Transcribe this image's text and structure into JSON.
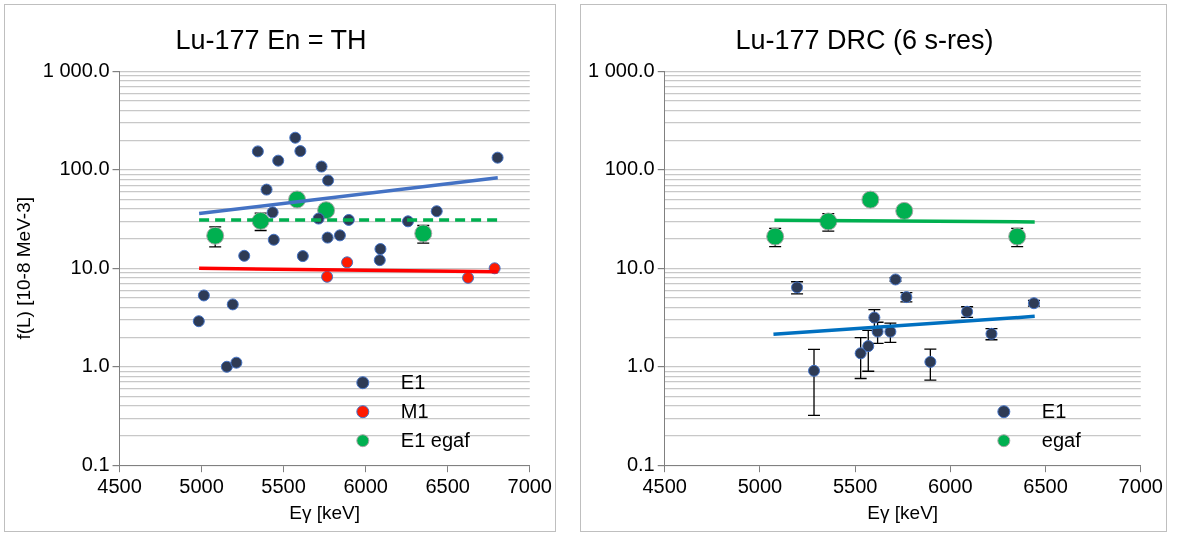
{
  "chart_data": [
    {
      "type": "scatter",
      "title": "Lu-177 En = TH",
      "xlabel": "Eγ [keV]",
      "ylabel": "f(L) [10-8 MeV-3]",
      "log": "y",
      "grid": "y",
      "legend": "bottom right",
      "xlim": [
        4500,
        7000
      ],
      "xticks": [
        4500,
        5000,
        5500,
        6000,
        6500,
        7000
      ],
      "ylim": [
        0.1,
        1000
      ],
      "yticks": [
        0.1,
        {
          "value": 0.2,
          "label": null
        },
        {
          "value": 0.3,
          "label": null
        },
        {
          "value": 0.4,
          "label": null
        },
        {
          "value": 0.5,
          "label": null
        },
        {
          "value": 0.6,
          "label": null
        },
        {
          "value": 0.7,
          "label": null
        },
        {
          "value": 0.8,
          "label": null
        },
        {
          "value": 0.9,
          "label": null
        },
        {
          "value": 1,
          "label": "1.0"
        },
        {
          "value": 2,
          "label": null
        },
        {
          "value": 3,
          "label": null
        },
        {
          "value": 4,
          "label": null
        },
        {
          "value": 5,
          "label": null
        },
        {
          "value": 6,
          "label": null
        },
        {
          "value": 7,
          "label": null
        },
        {
          "value": 8,
          "label": null
        },
        {
          "value": 9,
          "label": null
        },
        {
          "value": 10,
          "label": "10.0"
        },
        {
          "value": 20,
          "label": null
        },
        {
          "value": 30,
          "label": null
        },
        {
          "value": 40,
          "label": null
        },
        {
          "value": 50,
          "label": null
        },
        {
          "value": 60,
          "label": null
        },
        {
          "value": 70,
          "label": null
        },
        {
          "value": 80,
          "label": null
        },
        {
          "value": 90,
          "label": null
        },
        {
          "value": 100,
          "label": "100.0"
        },
        {
          "value": 200,
          "label": null
        },
        {
          "value": 300,
          "label": null
        },
        {
          "value": 400,
          "label": null
        },
        {
          "value": 500,
          "label": null
        },
        {
          "value": 600,
          "label": null
        },
        {
          "value": 700,
          "label": null
        },
        {
          "value": 800,
          "label": null
        },
        {
          "value": 900,
          "label": null
        },
        {
          "value": 1000,
          "label": "1 000.0"
        }
      ],
      "series": [
        {
          "name": "E1",
          "color": "#2e3b55",
          "marker": "circle",
          "x": [
            4983,
            5014,
            5154,
            5212,
            5190,
            5260,
            5343,
            5396,
            5433,
            5440,
            5467,
            5571,
            5602,
            5617,
            5731,
            5771,
            5713,
            5768,
            5843,
            5897,
            6090,
            6086,
            6258,
            6433,
            6804
          ],
          "values": [
            2.9,
            5.3,
            1.0,
            1.1,
            4.3,
            13.4,
            154,
            63,
            37,
            19.5,
            124,
            212,
            155,
            13.3,
            108,
            78,
            32,
            20.5,
            21.6,
            31,
            15.7,
            12.1,
            30,
            38,
            133
          ]
        },
        {
          "name": "M1",
          "color": "#ff1a00",
          "marker": "circle",
          "x": [
            5765,
            5887,
            6624,
            6786
          ],
          "values": [
            8.2,
            11.5,
            8.0,
            10.0
          ]
        },
        {
          "name": "E1 egaf",
          "color": "#00b050",
          "marker": "circle",
          "x": [
            5083,
            5360,
            5582,
            5759,
            6351
          ],
          "values": [
            21.4,
            30.3,
            50,
            38.9,
            22.6
          ],
          "errors": [
            4.9,
            6.1,
            null,
            null,
            4.6
          ]
        },
        {
          "type": "line",
          "color": "#4472c4",
          "marker": "none",
          "x": [
            4985,
            6805
          ],
          "values": [
            36,
            83
          ]
        },
        {
          "type": "line",
          "color": "#00b050",
          "marker": "none",
          "line_style": "dashed",
          "x": [
            4985,
            6805
          ],
          "values": [
            31,
            31
          ]
        },
        {
          "type": "line",
          "color": "#ff0000",
          "marker": "none",
          "x": [
            4985,
            6805
          ],
          "values": [
            10.0,
            9.2
          ]
        }
      ]
    },
    {
      "type": "scatter",
      "title": "Lu-177 DRC (6 s-res)",
      "xlabel": "Eγ [keV]",
      "log": "y",
      "grid": "y",
      "legend": "bottom right",
      "xlim": [
        4500,
        7000
      ],
      "xticks": [
        4500,
        5000,
        5500,
        6000,
        6500,
        7000
      ],
      "ylim": [
        0.1,
        1000
      ],
      "yticks": [
        0.1,
        {
          "value": 0.2,
          "label": null
        },
        {
          "value": 0.3,
          "label": null
        },
        {
          "value": 0.4,
          "label": null
        },
        {
          "value": 0.5,
          "label": null
        },
        {
          "value": 0.6,
          "label": null
        },
        {
          "value": 0.7,
          "label": null
        },
        {
          "value": 0.8,
          "label": null
        },
        {
          "value": 0.9,
          "label": null
        },
        {
          "value": 1,
          "label": "1.0"
        },
        {
          "value": 2,
          "label": null
        },
        {
          "value": 3,
          "label": null
        },
        {
          "value": 4,
          "label": null
        },
        {
          "value": 5,
          "label": null
        },
        {
          "value": 6,
          "label": null
        },
        {
          "value": 7,
          "label": null
        },
        {
          "value": 8,
          "label": null
        },
        {
          "value": 9,
          "label": null
        },
        {
          "value": 10,
          "label": "10.0"
        },
        {
          "value": 20,
          "label": null
        },
        {
          "value": 30,
          "label": null
        },
        {
          "value": 40,
          "label": null
        },
        {
          "value": 50,
          "label": null
        },
        {
          "value": 60,
          "label": null
        },
        {
          "value": 70,
          "label": null
        },
        {
          "value": 80,
          "label": null
        },
        {
          "value": 90,
          "label": null
        },
        {
          "value": 100,
          "label": "100.0"
        },
        {
          "value": 200,
          "label": null
        },
        {
          "value": 300,
          "label": null
        },
        {
          "value": 400,
          "label": null
        },
        {
          "value": 500,
          "label": null
        },
        {
          "value": 600,
          "label": null
        },
        {
          "value": 700,
          "label": null
        },
        {
          "value": 800,
          "label": null
        },
        {
          "value": 900,
          "label": null
        },
        {
          "value": 1000,
          "label": "1 000.0"
        }
      ],
      "series": [
        {
          "name": "E1",
          "color": "#2e3b55",
          "marker": "circle",
          "x": [
            5195,
            5284,
            5529,
            5569,
            5601,
            5618,
            5685,
            5712,
            5769,
            5895,
            6088,
            6216,
            6439
          ],
          "values": [
            6.4,
            0.91,
            1.37,
            1.62,
            3.16,
            2.28,
            2.27,
            7.7,
            5.1,
            1.12,
            3.62,
            2.16,
            4.42
          ],
          "errors": [
            0.9,
            0.59,
            0.61,
            0.72,
            0.65,
            0.55,
            0.5,
            0.3,
            0.55,
            0.39,
            0.45,
            0.28,
            0.3
          ]
        },
        {
          "name": "egaf",
          "color": "#00b050",
          "marker": "circle",
          "x": [
            5080,
            5359,
            5580,
            5758,
            6351
          ],
          "values": [
            21.0,
            29.9,
            49.8,
            38.3,
            21.0
          ],
          "errors": [
            4.4,
            6.0,
            null,
            null,
            4.4
          ]
        },
        {
          "type": "line",
          "color": "#0070c0",
          "marker": "none",
          "x": [
            5071,
            6443
          ],
          "values": [
            2.14,
            3.25
          ]
        },
        {
          "type": "line",
          "color": "#00b050",
          "marker": "none",
          "x": [
            5076,
            6443
          ],
          "values": [
            30.8,
            29.6
          ]
        }
      ]
    }
  ]
}
